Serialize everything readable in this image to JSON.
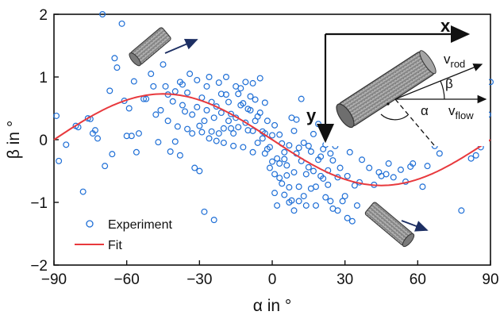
{
  "chart_data": {
    "type": "scatter",
    "xlabel": "α in °",
    "ylabel": "β in °",
    "xlim": [
      -90,
      90
    ],
    "ylim": [
      -2,
      2
    ],
    "xticks": [
      -90,
      -60,
      -30,
      0,
      30,
      60,
      90
    ],
    "yticks": [
      -2,
      -1,
      0,
      1,
      2
    ],
    "legend_position": "bottom-left",
    "series": [
      {
        "name": "Experiment",
        "kind": "scatter",
        "marker": "open-circle",
        "color": "#1f6fd6",
        "points": [
          [
            -89,
            0.38
          ],
          [
            -88,
            -0.34
          ],
          [
            -85,
            -0.08
          ],
          [
            -81,
            0.22
          ],
          [
            -80,
            0.2
          ],
          [
            -78,
            -0.83
          ],
          [
            -76,
            0.34
          ],
          [
            -74,
            0.1
          ],
          [
            -73,
            0.15
          ],
          [
            -72,
            0.02
          ],
          [
            -70,
            2.0
          ],
          [
            -69,
            -0.42
          ],
          [
            -66,
            -0.23
          ],
          [
            -65,
            1.3
          ],
          [
            -64,
            1.15
          ],
          [
            -62,
            1.85
          ],
          [
            -61,
            0.62
          ],
          [
            -59,
            0.5
          ],
          [
            -58,
            0.06
          ],
          [
            -57,
            0.93
          ],
          [
            -56,
            -0.2
          ],
          [
            -55,
            0.1
          ],
          [
            -53,
            0.65
          ],
          [
            -50,
            1.05
          ],
          [
            -49,
            0.85
          ],
          [
            -48,
            0.4
          ],
          [
            -47,
            -0.04
          ],
          [
            -45,
            1.2
          ],
          [
            -44,
            0.85
          ],
          [
            -43,
            0.3
          ],
          [
            -42,
            -0.19
          ],
          [
            -41,
            0.61
          ],
          [
            -40,
            0.77
          ],
          [
            -39,
            0.21
          ],
          [
            -38,
            0.92
          ],
          [
            -37,
            0.88
          ],
          [
            -36,
            0.45
          ],
          [
            -35,
            0.75
          ],
          [
            -34,
            1.05
          ],
          [
            -33,
            0.1
          ],
          [
            -32,
            -0.45
          ],
          [
            -31,
            0.95
          ],
          [
            -30,
            -0.5
          ],
          [
            -29,
            0.67
          ],
          [
            -28,
            0.3
          ],
          [
            -28,
            -1.15
          ],
          [
            -27,
            0.85
          ],
          [
            -26,
            1.0
          ],
          [
            -25,
            0.13
          ],
          [
            -24,
            -1.28
          ],
          [
            -23,
            0.53
          ],
          [
            -22,
            0.91
          ],
          [
            -21,
            0.73
          ],
          [
            -20,
            0.18
          ],
          [
            -19,
            1.0
          ],
          [
            -18,
            0.6
          ],
          [
            -17,
            0.41
          ],
          [
            -16,
            -0.1
          ],
          [
            -15,
            0.35
          ],
          [
            -14,
            0.73
          ],
          [
            -13,
            0.55
          ],
          [
            -12,
            0.58
          ],
          [
            -11,
            0.27
          ],
          [
            -10,
            0.49
          ],
          [
            -9,
            0.69
          ],
          [
            -8,
            0.14
          ],
          [
            -7,
            0.64
          ],
          [
            -6,
            0.37
          ],
          [
            -5,
            0.43
          ],
          [
            -4,
            0.13
          ],
          [
            -3,
            0.59
          ],
          [
            -2,
            0.3
          ],
          [
            -1,
            -0.12
          ],
          [
            0,
            0.07
          ],
          [
            1,
            0.23
          ],
          [
            2,
            -0.3
          ],
          [
            3,
            0.08
          ],
          [
            4,
            -0.06
          ],
          [
            5,
            -0.31
          ],
          [
            6,
            -0.41
          ],
          [
            7,
            -0.09
          ],
          [
            8,
            0.35
          ],
          [
            9,
            0.14
          ],
          [
            10,
            -0.22
          ],
          [
            11,
            -0.13
          ],
          [
            12,
            -0.34
          ],
          [
            13,
            -0.05
          ],
          [
            14,
            -0.55
          ],
          [
            15,
            -0.44
          ],
          [
            16,
            -0.19
          ],
          [
            17,
            0.09
          ],
          [
            18,
            -0.75
          ],
          [
            19,
            -0.32
          ],
          [
            20,
            -0.27
          ],
          [
            21,
            -0.62
          ],
          [
            22,
            -0.92
          ],
          [
            23,
            -0.49
          ],
          [
            24,
            -0.98
          ],
          [
            25,
            -1.1
          ],
          [
            26,
            -0.1
          ],
          [
            27,
            -0.6
          ],
          [
            28,
            -0.45
          ],
          [
            30,
            -0.9
          ],
          [
            31,
            -1.25
          ],
          [
            33,
            -1.3
          ],
          [
            34,
            -0.73
          ],
          [
            35,
            -1.05
          ],
          [
            37,
            -0.32
          ],
          [
            40,
            -0.45
          ],
          [
            42,
            -0.72
          ],
          [
            44,
            -0.52
          ],
          [
            47,
            -0.55
          ],
          [
            48,
            -0.38
          ],
          [
            50,
            -0.6
          ],
          [
            53,
            -0.48
          ],
          [
            55,
            -0.67
          ],
          [
            57,
            -0.43
          ],
          [
            58,
            -0.38
          ],
          [
            62,
            -0.75
          ],
          [
            64,
            -0.42
          ],
          [
            65,
            0.28
          ],
          [
            67,
            -0.1
          ],
          [
            69,
            -0.22
          ],
          [
            72,
            0.4
          ],
          [
            75,
            0.05
          ],
          [
            78,
            -1.13
          ],
          [
            82,
            -0.3
          ],
          [
            84,
            -0.25
          ],
          [
            86,
            -0.12
          ],
          [
            88,
            0.1
          ],
          [
            89,
            0.4
          ],
          [
            90,
            0.92
          ],
          [
            -8,
            0.9
          ],
          [
            -5,
            0.98
          ],
          [
            -3,
            0.1
          ],
          [
            -1,
            -0.45
          ],
          [
            1,
            -0.85
          ],
          [
            3,
            -0.61
          ],
          [
            5,
            -0.88
          ],
          [
            7,
            -0.76
          ],
          [
            9,
            -0.52
          ],
          [
            11,
            -0.75
          ],
          [
            13,
            -0.9
          ],
          [
            15,
            -0.1
          ],
          [
            17,
            -0.5
          ],
          [
            19,
            0.25
          ],
          [
            21,
            -0.15
          ],
          [
            23,
            -0.72
          ],
          [
            25,
            -0.33
          ],
          [
            12,
            0.65
          ],
          [
            10,
            0.32
          ],
          [
            8,
            -0.97
          ],
          [
            6,
            -0.57
          ],
          [
            4,
            -0.7
          ],
          [
            2,
            -1.05
          ],
          [
            0,
            -0.35
          ],
          [
            -2,
            -0.15
          ],
          [
            -4,
            0.02
          ],
          [
            -6,
            -0.05
          ],
          [
            -8,
            -0.2
          ],
          [
            -10,
            0.15
          ],
          [
            -12,
            -0.12
          ],
          [
            -14,
            0.2
          ],
          [
            -16,
            0.1
          ],
          [
            -18,
            0.3
          ],
          [
            -20,
            -0.05
          ],
          [
            -22,
            0.1
          ],
          [
            -24,
            0.35
          ],
          [
            -26,
            0.02
          ],
          [
            -30,
            0.22
          ],
          [
            -33,
            0.4
          ],
          [
            -35,
            0.17
          ],
          [
            -38,
            -0.25
          ],
          [
            -40,
            -0.03
          ],
          [
            -27,
            0.47
          ],
          [
            -29,
            0.12
          ],
          [
            -21,
            0.43
          ],
          [
            -19,
            0.72
          ],
          [
            -15,
            0.85
          ],
          [
            -11,
            0.92
          ],
          [
            -9,
            0.47
          ],
          [
            -7,
            0.3
          ],
          [
            -3,
            -0.22
          ],
          [
            1,
            -0.55
          ],
          [
            3,
            -0.38
          ],
          [
            5,
            -0.2
          ],
          [
            7,
            -1.0
          ],
          [
            9,
            -1.13
          ],
          [
            11,
            -0.98
          ],
          [
            14,
            -1.05
          ],
          [
            16,
            -0.78
          ],
          [
            18,
            -1.05
          ],
          [
            20,
            -0.58
          ],
          [
            22,
            -0.08
          ],
          [
            24,
            -0.22
          ],
          [
            27,
            -1.13
          ],
          [
            29,
            -0.98
          ],
          [
            31,
            -0.58
          ],
          [
            32,
            -0.2
          ],
          [
            36,
            -0.68
          ],
          [
            38,
            0.0
          ],
          [
            45,
            -0.58
          ],
          [
            -13,
            0.82
          ],
          [
            -17,
            0.18
          ],
          [
            -23,
            -0.02
          ],
          [
            -25,
            0.6
          ],
          [
            -31,
            0.52
          ],
          [
            -37,
            0.55
          ],
          [
            -43,
            0.72
          ],
          [
            -46,
            0.47
          ],
          [
            -52,
            0.65
          ],
          [
            -60,
            0.06
          ],
          [
            -67,
            0.78
          ],
          [
            -75,
            0.33
          ]
        ]
      },
      {
        "name": "Fit",
        "kind": "line",
        "color": "#e8393d",
        "model": "beta = -A * sin(2 * alpha)",
        "amplitude": 0.73
      }
    ],
    "inset_labels": {
      "x_axis": "x",
      "y_axis": "y",
      "v_rod_main": "v",
      "v_rod_sub": "rod",
      "v_flow_main": "v",
      "v_flow_sub": "flow",
      "beta": "β",
      "alpha": "α"
    }
  }
}
